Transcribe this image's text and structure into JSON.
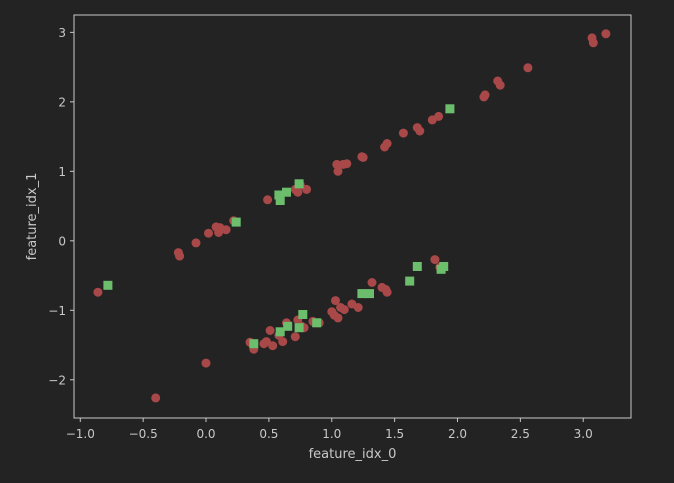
{
  "chart_data": {
    "type": "scatter",
    "title": "",
    "xlabel": "feature_idx_0",
    "ylabel": "feature_idx_1",
    "xlim": [
      -1.05,
      3.38
    ],
    "ylim": [
      -2.55,
      3.25
    ],
    "x_ticks": [
      -1.0,
      -0.5,
      0.0,
      0.5,
      1.0,
      1.5,
      2.0,
      2.5,
      3.0
    ],
    "x_tick_labels": [
      "−1.0",
      "−0.5",
      "0.0",
      "0.5",
      "1.0",
      "1.5",
      "2.0",
      "2.5",
      "3.0"
    ],
    "y_ticks": [
      -2,
      -1,
      0,
      1,
      2,
      3
    ],
    "y_tick_labels": [
      "−2",
      "−1",
      "0",
      "1",
      "2",
      "3"
    ],
    "grid": false,
    "legend": false,
    "series": [
      {
        "marker": "circle",
        "color": "#a84848",
        "points": [
          [
            -0.86,
            -0.74
          ],
          [
            -0.4,
            -2.26
          ],
          [
            -0.22,
            -0.17
          ],
          [
            -0.21,
            -0.22
          ],
          [
            -0.08,
            -0.03
          ],
          [
            0.02,
            0.11
          ],
          [
            0.08,
            0.2
          ],
          [
            0.1,
            0.12
          ],
          [
            0.11,
            0.19
          ],
          [
            0.16,
            0.16
          ],
          [
            0.22,
            0.29
          ],
          [
            0.49,
            0.59
          ],
          [
            0.59,
            0.61
          ],
          [
            0.71,
            0.74
          ],
          [
            0.73,
            0.7
          ],
          [
            0.75,
            0.8
          ],
          [
            0.8,
            0.74
          ],
          [
            0.0,
            -1.76
          ],
          [
            0.35,
            -1.46
          ],
          [
            0.38,
            -1.56
          ],
          [
            0.46,
            -1.48
          ],
          [
            0.48,
            -1.45
          ],
          [
            0.51,
            -1.29
          ],
          [
            0.53,
            -1.51
          ],
          [
            0.58,
            -1.36
          ],
          [
            0.61,
            -1.45
          ],
          [
            0.64,
            -1.18
          ],
          [
            0.71,
            -1.38
          ],
          [
            0.73,
            -1.14
          ],
          [
            0.76,
            -1.23
          ],
          [
            0.78,
            -1.25
          ],
          [
            0.85,
            -1.16
          ],
          [
            0.9,
            -1.18
          ],
          [
            1.0,
            -1.02
          ],
          [
            1.02,
            -1.07
          ],
          [
            1.03,
            -0.86
          ],
          [
            1.05,
            -1.11
          ],
          [
            1.07,
            -0.96
          ],
          [
            1.1,
            -0.99
          ],
          [
            1.16,
            -0.91
          ],
          [
            1.21,
            -0.96
          ],
          [
            1.32,
            -0.6
          ],
          [
            1.4,
            -0.67
          ],
          [
            1.43,
            -0.7
          ],
          [
            1.44,
            -0.74
          ],
          [
            1.82,
            -0.27
          ],
          [
            1.86,
            -0.38
          ],
          [
            1.04,
            1.1
          ],
          [
            1.05,
            1.0
          ],
          [
            1.09,
            1.1
          ],
          [
            1.12,
            1.11
          ],
          [
            1.24,
            1.21
          ],
          [
            1.25,
            1.2
          ],
          [
            1.42,
            1.35
          ],
          [
            1.44,
            1.4
          ],
          [
            1.57,
            1.55
          ],
          [
            1.68,
            1.63
          ],
          [
            1.7,
            1.58
          ],
          [
            1.8,
            1.74
          ],
          [
            1.85,
            1.79
          ],
          [
            2.21,
            2.07
          ],
          [
            2.22,
            2.1
          ],
          [
            2.32,
            2.3
          ],
          [
            2.34,
            2.24
          ],
          [
            2.56,
            2.49
          ],
          [
            3.07,
            2.92
          ],
          [
            3.08,
            2.85
          ],
          [
            3.18,
            2.98
          ]
        ]
      },
      {
        "marker": "square",
        "color": "#6cbe6c",
        "points": [
          [
            -0.78,
            -0.64
          ],
          [
            0.24,
            0.27
          ],
          [
            0.58,
            0.66
          ],
          [
            0.59,
            0.58
          ],
          [
            0.64,
            0.7
          ],
          [
            0.74,
            0.82
          ],
          [
            0.38,
            -1.48
          ],
          [
            0.59,
            -1.31
          ],
          [
            0.65,
            -1.23
          ],
          [
            0.74,
            -1.25
          ],
          [
            0.77,
            -1.06
          ],
          [
            0.88,
            -1.18
          ],
          [
            1.24,
            -0.76
          ],
          [
            1.3,
            -0.76
          ],
          [
            1.62,
            -0.58
          ],
          [
            1.68,
            -0.37
          ],
          [
            1.87,
            -0.41
          ],
          [
            1.89,
            -0.37
          ],
          [
            1.94,
            1.9
          ]
        ]
      }
    ]
  }
}
